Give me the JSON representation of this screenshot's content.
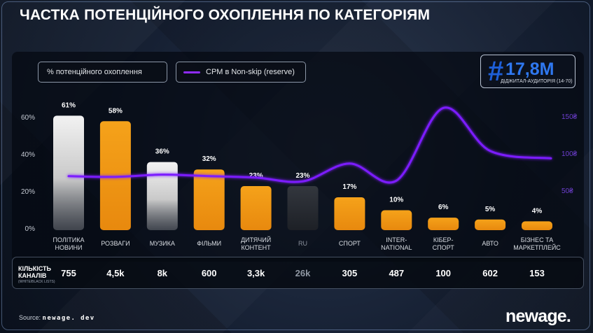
{
  "page": {
    "title": "ЧАСТКА ПОТЕНЦІЙНОГО ОХОПЛЕННЯ ПО КАТЕГОРІЯМ",
    "source_label": "Source:",
    "source_value": "newage. dev",
    "logo": "newage."
  },
  "badge": {
    "hash": "#",
    "value": "17,8M",
    "caption": "ДІДЖИТАЛ-АУДИТОРІЯ (14-70)"
  },
  "legend": {
    "reach": "% потенційного охоплення",
    "cpm": "CPM в Non-skip (reserve)"
  },
  "colors": {
    "white_bar": "#e4e4e4",
    "orange_bar": "#f29c17",
    "dark_bar": "#2b2f36",
    "cpm_line": "#7b1fff",
    "badge_blue": "#2f78f0"
  },
  "counts_header": {
    "label_line1": "КІЛЬКІСТЬ",
    "label_line2": "КАНАЛІВ",
    "sublabel": "(WHITE/BLACK LISTS)"
  },
  "chart_data": {
    "type": "bar",
    "categories": [
      [
        "ПОЛІТИКА",
        "НОВИНИ"
      ],
      [
        "РОЗВАГИ"
      ],
      [
        "МУЗИКА"
      ],
      [
        "ФІЛЬМИ"
      ],
      [
        "ДИТЯЧИЙ",
        "КОНТЕНТ"
      ],
      [
        "RU"
      ],
      [
        "СПОРТ"
      ],
      [
        "INTER-",
        "NATIONAL"
      ],
      [
        "КІБЕР-",
        "СПОРТ"
      ],
      [
        "АВТО"
      ],
      [
        "БІЗНЕС ТА",
        "МАРКЕТПЛЕЙС"
      ]
    ],
    "series": [
      {
        "name": "% потенційного охоплення",
        "type": "bar",
        "values": [
          61,
          58,
          36,
          32,
          23,
          23,
          17,
          10,
          6,
          5,
          4
        ],
        "labels": [
          "61%",
          "58%",
          "36%",
          "32%",
          "23%",
          "23%",
          "17%",
          "10%",
          "6%",
          "5%",
          "4%"
        ],
        "colors": [
          "white",
          "orange",
          "white",
          "orange",
          "orange",
          "dark",
          "orange",
          "orange",
          "orange",
          "orange",
          "orange"
        ],
        "axis": "left"
      },
      {
        "name": "CPM в Non-skip (reserve)",
        "type": "line",
        "values": [
          70,
          69,
          72,
          70,
          68,
          63,
          87,
          64,
          162,
          104,
          94
        ],
        "axis": "right"
      }
    ],
    "y_left": {
      "ticks": [
        "0%",
        "20%",
        "40%",
        "60%"
      ],
      "values": [
        0,
        20,
        40,
        60
      ],
      "range": [
        0,
        62
      ]
    },
    "y_right": {
      "ticks": [
        "50₴",
        "100₴",
        "150₴"
      ],
      "values": [
        50,
        100,
        150
      ],
      "range": [
        0,
        155
      ]
    },
    "channel_counts": [
      "755",
      "4,5k",
      "8k",
      "600",
      "3,3k",
      "26k",
      "305",
      "487",
      "100",
      "602",
      "153"
    ],
    "grid": false,
    "legend_position": "top-left"
  }
}
